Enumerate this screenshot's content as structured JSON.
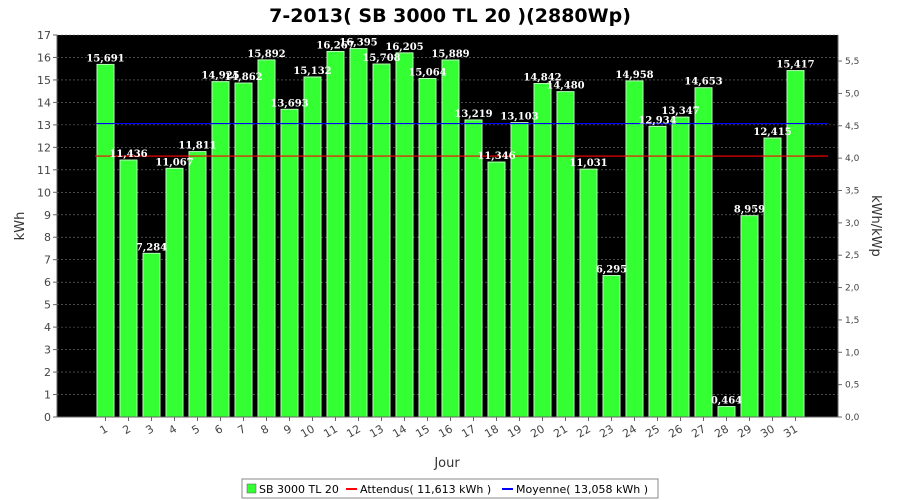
{
  "chart_data": {
    "type": "bar",
    "title": "7-2013( SB 3000 TL 20 )(2880Wp)",
    "xlabel": "Jour",
    "ylabel": "kWh",
    "ylabel_right": "kWh/kWp",
    "ylim": [
      0,
      17
    ],
    "ylim_right": [
      0,
      5.9027
    ],
    "yticks": [
      "0",
      "1",
      "2",
      "3",
      "4",
      "5",
      "6",
      "7",
      "8",
      "9",
      "10",
      "11",
      "12",
      "13",
      "14",
      "15",
      "16",
      "17"
    ],
    "yticks_right": [
      "0,0",
      "0,5",
      "1,0",
      "1,5",
      "2,0",
      "2,5",
      "3,0",
      "3,5",
      "4,0",
      "4,5",
      "5,0",
      "5,5"
    ],
    "grid": true,
    "legend_position": "bottom",
    "categories": [
      "1",
      "2",
      "3",
      "4",
      "5",
      "6",
      "7",
      "8",
      "9",
      "10",
      "11",
      "12",
      "13",
      "14",
      "15",
      "16",
      "17",
      "18",
      "19",
      "20",
      "21",
      "22",
      "23",
      "24",
      "25",
      "26",
      "27",
      "28",
      "29",
      "30",
      "31"
    ],
    "series": [
      {
        "name": "SB 3000 TL 20",
        "color": "#33ff33",
        "values": [
          15.691,
          11.436,
          7.284,
          11.067,
          11.811,
          14.925,
          14.862,
          15.892,
          13.693,
          15.132,
          16.267,
          16.395,
          15.708,
          16.205,
          15.064,
          15.889,
          13.219,
          11.346,
          13.103,
          14.842,
          14.48,
          11.031,
          6.295,
          14.958,
          12.934,
          13.347,
          14.653,
          0.464,
          8.959,
          12.415,
          15.417
        ],
        "labels": [
          "15,691",
          "11,436",
          "7,284",
          "11,067",
          "11,811",
          "14,925",
          "14,862",
          "15,892",
          "13,693",
          "15,132",
          "16,267",
          "16,395",
          "15,708",
          "16,205",
          "15,064",
          "15,889",
          "13,219",
          "11,346",
          "13,103",
          "14,842",
          "14,480",
          "11,031",
          "6,295",
          "14,958",
          "12,934",
          "13,347",
          "14,653",
          "0,464",
          "8,959",
          "12,415",
          "15,417"
        ]
      }
    ],
    "reference_lines": [
      {
        "name": "Attendus( 11,613 kWh )",
        "value": 11.613,
        "color": "#ff0000"
      },
      {
        "name": "Moyenne( 13,058 kWh )",
        "value": 13.058,
        "color": "#0000ff"
      }
    ]
  }
}
